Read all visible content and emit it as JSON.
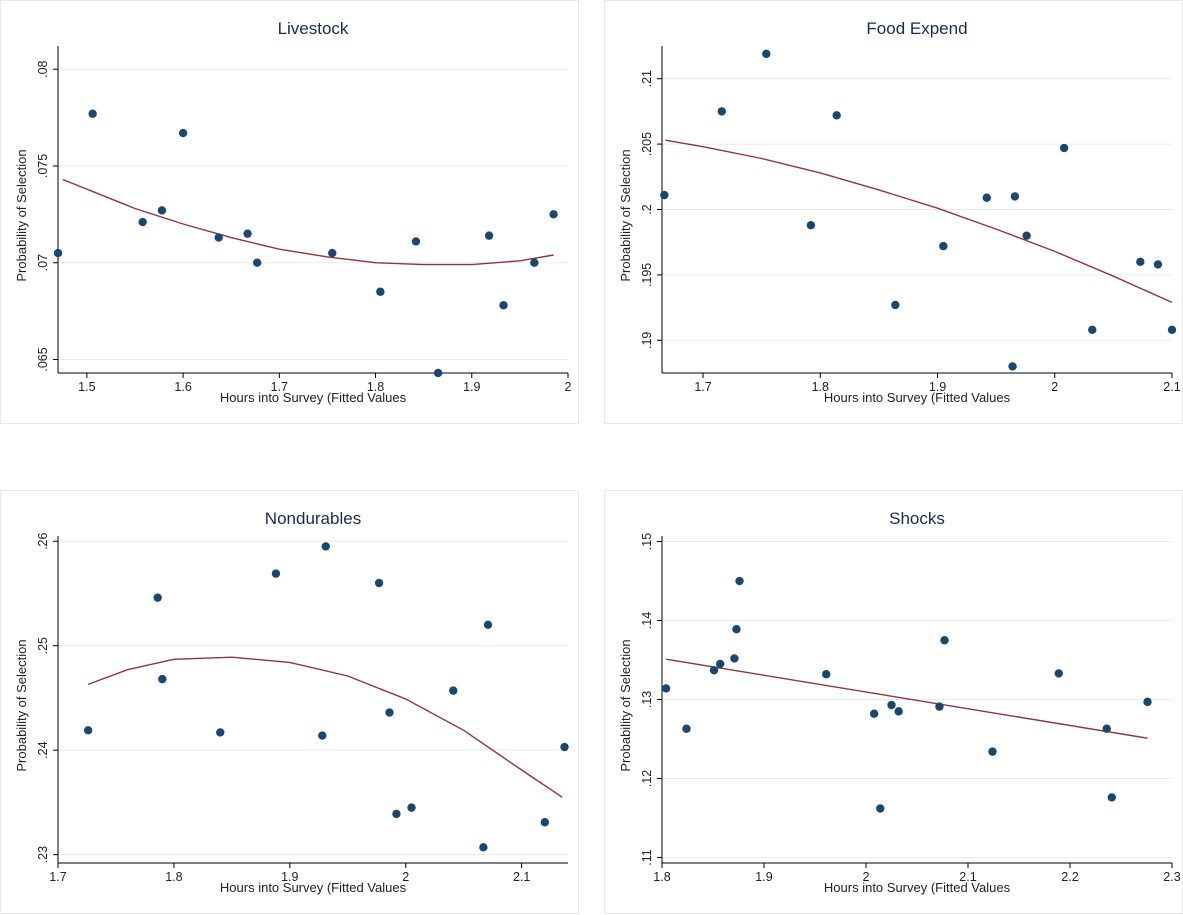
{
  "chart_data": [
    {
      "type": "scatter",
      "title": "Livestock",
      "xlabel": "Hours into Survey (Fitted Values",
      "ylabel": "Probability of Selection",
      "xlim": [
        1.47,
        2.0
      ],
      "ylim": [
        0.0643,
        0.0812
      ],
      "xticks": [
        "1.5",
        "1.6",
        "1.7",
        "1.8",
        "1.9",
        "2"
      ],
      "yticks": [
        ".065",
        ".07",
        ".075",
        ".08"
      ],
      "xtick_values": [
        1.5,
        1.6,
        1.7,
        1.8,
        1.9,
        2.0
      ],
      "ytick_values": [
        0.065,
        0.07,
        0.075,
        0.08
      ],
      "grid": true,
      "marker_color": "#1a476f",
      "fit_color": "#90353b",
      "points": [
        {
          "x": 1.47,
          "y": 0.0705
        },
        {
          "x": 1.506,
          "y": 0.0777
        },
        {
          "x": 1.558,
          "y": 0.0721
        },
        {
          "x": 1.578,
          "y": 0.0727
        },
        {
          "x": 1.6,
          "y": 0.0767
        },
        {
          "x": 1.637,
          "y": 0.0713
        },
        {
          "x": 1.667,
          "y": 0.0715
        },
        {
          "x": 1.677,
          "y": 0.07
        },
        {
          "x": 1.755,
          "y": 0.0705
        },
        {
          "x": 1.805,
          "y": 0.0685
        },
        {
          "x": 1.842,
          "y": 0.0711
        },
        {
          "x": 1.865,
          "y": 0.0643
        },
        {
          "x": 1.918,
          "y": 0.0714
        },
        {
          "x": 1.933,
          "y": 0.0678
        },
        {
          "x": 1.965,
          "y": 0.07
        },
        {
          "x": 1.985,
          "y": 0.0725
        }
      ],
      "fit": {
        "x": [
          1.475,
          1.55,
          1.6,
          1.65,
          1.7,
          1.75,
          1.8,
          1.85,
          1.9,
          1.95,
          1.985
        ],
        "y": [
          0.0743,
          0.0728,
          0.072,
          0.0713,
          0.0707,
          0.0703,
          0.07,
          0.0699,
          0.0699,
          0.0701,
          0.0704
        ]
      }
    },
    {
      "type": "scatter",
      "title": "Food Expend",
      "xlabel": "Hours into Survey (Fitted Values",
      "ylabel": "Probability of Selection",
      "xlim": [
        1.665,
        2.1
      ],
      "ylim": [
        0.1875,
        0.2125
      ],
      "xticks": [
        "1.7",
        "1.8",
        "1.9",
        "2",
        "2.1"
      ],
      "yticks": [
        ".19",
        ".195",
        ".2",
        ".205",
        ".21"
      ],
      "xtick_values": [
        1.7,
        1.8,
        1.9,
        2.0,
        2.1
      ],
      "ytick_values": [
        0.19,
        0.195,
        0.2,
        0.205,
        0.21
      ],
      "grid": true,
      "marker_color": "#1a476f",
      "fit_color": "#90353b",
      "points": [
        {
          "x": 1.667,
          "y": 0.2011
        },
        {
          "x": 1.716,
          "y": 0.2075
        },
        {
          "x": 1.754,
          "y": 0.2119
        },
        {
          "x": 1.792,
          "y": 0.1988
        },
        {
          "x": 1.814,
          "y": 0.2072
        },
        {
          "x": 1.864,
          "y": 0.1927
        },
        {
          "x": 1.905,
          "y": 0.1972
        },
        {
          "x": 1.942,
          "y": 0.2009
        },
        {
          "x": 1.964,
          "y": 0.188
        },
        {
          "x": 1.966,
          "y": 0.201
        },
        {
          "x": 1.976,
          "y": 0.198
        },
        {
          "x": 2.008,
          "y": 0.2047
        },
        {
          "x": 2.032,
          "y": 0.1908
        },
        {
          "x": 2.073,
          "y": 0.196
        },
        {
          "x": 2.088,
          "y": 0.1958
        },
        {
          "x": 2.1,
          "y": 0.1908
        }
      ],
      "fit": {
        "x": [
          1.668,
          1.7,
          1.75,
          1.8,
          1.85,
          1.9,
          1.95,
          2.0,
          2.05,
          2.1
        ],
        "y": [
          0.2053,
          0.2048,
          0.2039,
          0.2028,
          0.2015,
          0.2001,
          0.1985,
          0.1968,
          0.1949,
          0.1929
        ]
      }
    },
    {
      "type": "scatter",
      "title": "Nondurables",
      "xlabel": "Hours into Survey (Fitted Values",
      "ylabel": "Probability of Selection",
      "xlim": [
        1.7,
        2.14
      ],
      "ylim": [
        0.2292,
        0.2605
      ],
      "xticks": [
        "1.7",
        "1.8",
        "1.9",
        "2",
        "2.1"
      ],
      "yticks": [
        ".23",
        ".24",
        ".25",
        ".26"
      ],
      "xtick_values": [
        1.7,
        1.8,
        1.9,
        2.0,
        2.1
      ],
      "ytick_values": [
        0.23,
        0.24,
        0.25,
        0.26
      ],
      "grid": true,
      "marker_color": "#1a476f",
      "fit_color": "#90353b",
      "points": [
        {
          "x": 1.726,
          "y": 0.2419
        },
        {
          "x": 1.786,
          "y": 0.2546
        },
        {
          "x": 1.79,
          "y": 0.2468
        },
        {
          "x": 1.84,
          "y": 0.2417
        },
        {
          "x": 1.888,
          "y": 0.2569
        },
        {
          "x": 1.928,
          "y": 0.2414
        },
        {
          "x": 1.931,
          "y": 0.2595
        },
        {
          "x": 1.977,
          "y": 0.256
        },
        {
          "x": 1.986,
          "y": 0.2436
        },
        {
          "x": 1.992,
          "y": 0.2339
        },
        {
          "x": 2.005,
          "y": 0.2345
        },
        {
          "x": 2.041,
          "y": 0.2457
        },
        {
          "x": 2.067,
          "y": 0.2307
        },
        {
          "x": 2.071,
          "y": 0.252
        },
        {
          "x": 2.12,
          "y": 0.2331
        },
        {
          "x": 2.137,
          "y": 0.2403
        }
      ],
      "fit": {
        "x": [
          1.726,
          1.76,
          1.8,
          1.85,
          1.9,
          1.95,
          2.0,
          2.05,
          2.1,
          2.135
        ],
        "y": [
          0.2463,
          0.2477,
          0.2487,
          0.2489,
          0.2484,
          0.2471,
          0.2449,
          0.2419,
          0.2381,
          0.2355
        ]
      }
    },
    {
      "type": "scatter",
      "title": "Shocks",
      "xlabel": "Hours into Survey (Fitted Values",
      "ylabel": "Probability of Selection",
      "xlim": [
        1.8,
        2.3
      ],
      "ylim": [
        0.1093,
        0.1507
      ],
      "xticks": [
        "1.8",
        "1.9",
        "2",
        "2.1",
        "2.2",
        "2.3"
      ],
      "yticks": [
        ".11",
        ".12",
        ".13",
        ".14",
        ".15"
      ],
      "xtick_values": [
        1.8,
        1.9,
        2.0,
        2.1,
        2.2,
        2.3
      ],
      "ytick_values": [
        0.11,
        0.12,
        0.13,
        0.14,
        0.15
      ],
      "grid": true,
      "marker_color": "#1a476f",
      "fit_color": "#90353b",
      "points": [
        {
          "x": 1.804,
          "y": 0.1314
        },
        {
          "x": 1.824,
          "y": 0.1263
        },
        {
          "x": 1.851,
          "y": 0.1337
        },
        {
          "x": 1.857,
          "y": 0.1345
        },
        {
          "x": 1.871,
          "y": 0.1352
        },
        {
          "x": 1.873,
          "y": 0.1389
        },
        {
          "x": 1.876,
          "y": 0.145
        },
        {
          "x": 1.961,
          "y": 0.1332
        },
        {
          "x": 2.008,
          "y": 0.1282
        },
        {
          "x": 2.014,
          "y": 0.1162
        },
        {
          "x": 2.025,
          "y": 0.1293
        },
        {
          "x": 2.032,
          "y": 0.1285
        },
        {
          "x": 2.072,
          "y": 0.1291
        },
        {
          "x": 2.077,
          "y": 0.1375
        },
        {
          "x": 2.124,
          "y": 0.1234
        },
        {
          "x": 2.189,
          "y": 0.1333
        },
        {
          "x": 2.236,
          "y": 0.1263
        },
        {
          "x": 2.241,
          "y": 0.1176
        },
        {
          "x": 2.276,
          "y": 0.1297
        }
      ],
      "fit": {
        "x": [
          1.804,
          2.276
        ],
        "y": [
          0.1351,
          0.1251
        ]
      }
    }
  ]
}
